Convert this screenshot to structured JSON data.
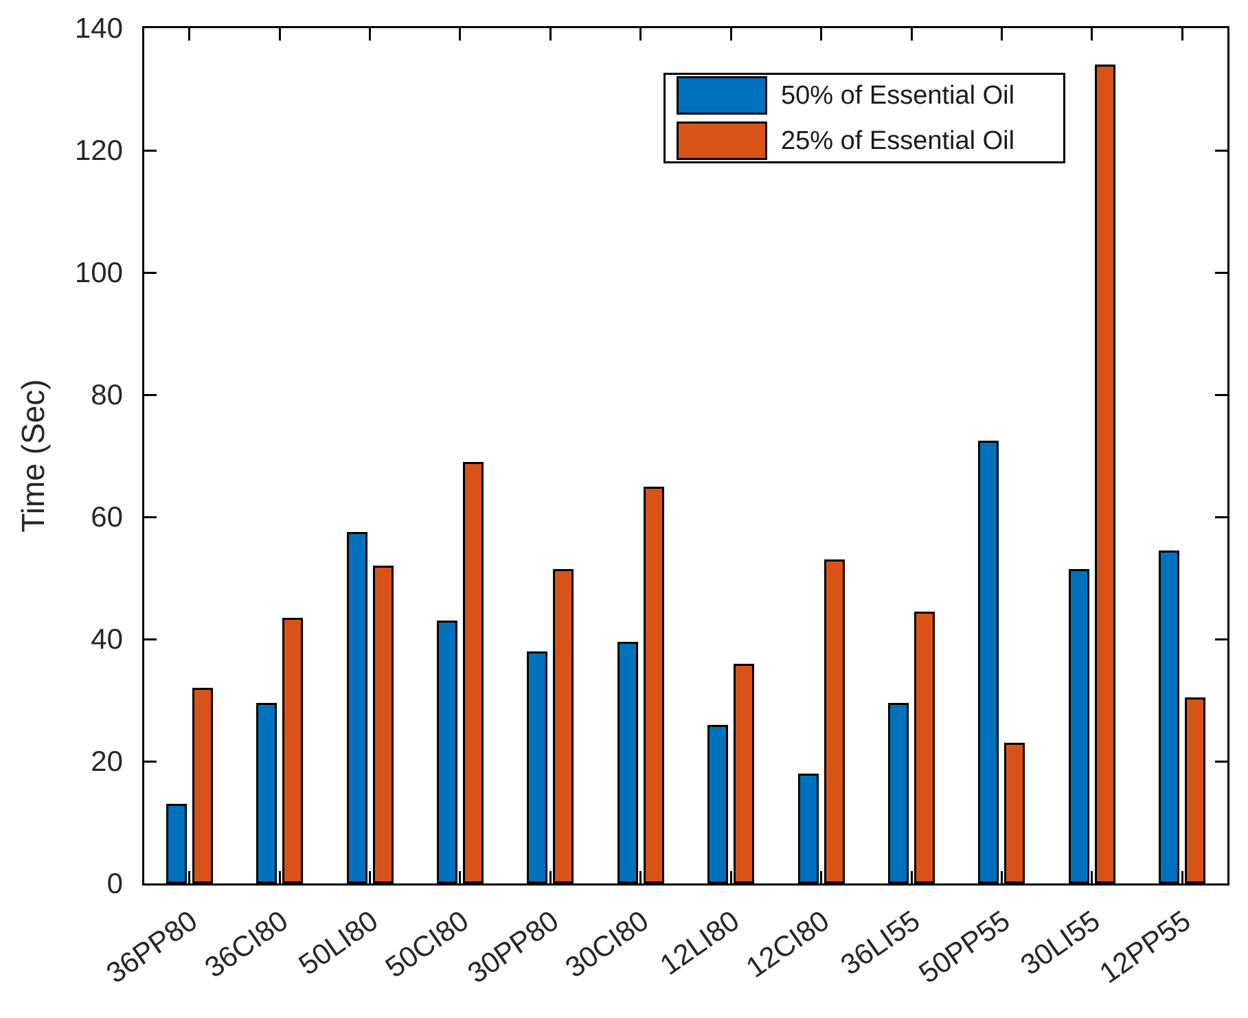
{
  "figure": {
    "background_color": "#ffffff",
    "axis_color": "#000000",
    "tick_label_color": "#262626"
  },
  "chart_data": {
    "type": "bar",
    "title": "",
    "xlabel": "",
    "ylabel": "Time (Sec)",
    "categories": [
      "36PP80",
      "36CI80",
      "50LI80",
      "50CI80",
      "30PP80",
      "30CI80",
      "12LI80",
      "12CI80",
      "36LI55",
      "50PP55",
      "30LI55",
      "12PP55"
    ],
    "series": [
      {
        "name": "50% of Essential Oil",
        "color": "#0072BD",
        "values": [
          13,
          29.5,
          57.5,
          43,
          38,
          39.5,
          26,
          18,
          29.5,
          72.5,
          51.5,
          54.5
        ]
      },
      {
        "name": "25% of Essential Oil",
        "color": "#D95319",
        "values": [
          32,
          43.5,
          52,
          69,
          51.5,
          65,
          36,
          53,
          44.5,
          23,
          134,
          30.5
        ]
      }
    ],
    "ylim": [
      0,
      140
    ],
    "yticks": [
      0,
      20,
      40,
      60,
      80,
      100,
      120,
      140
    ],
    "grid": false,
    "legend_position": "top-right",
    "bar_edge_color": "#000000"
  }
}
